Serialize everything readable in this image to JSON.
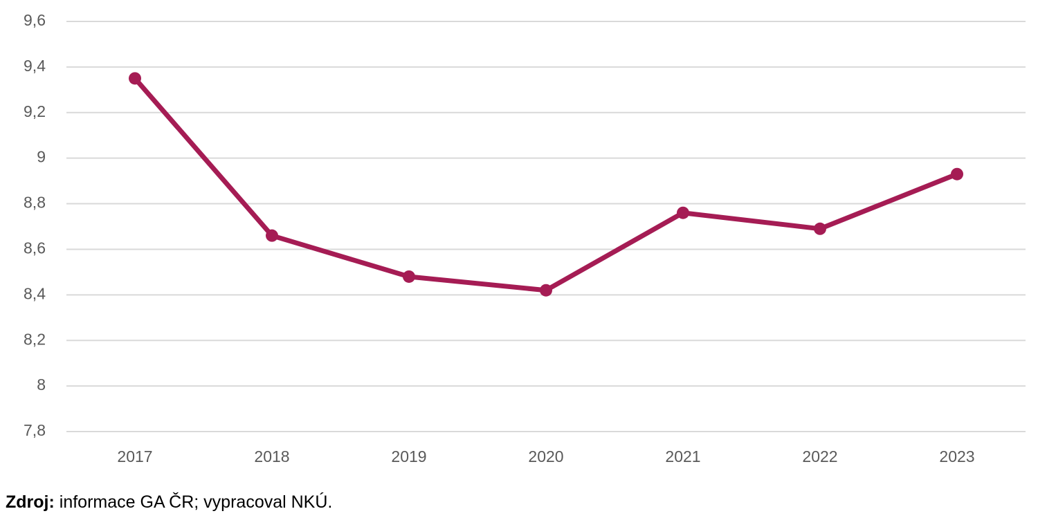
{
  "chart_data": {
    "type": "line",
    "categories": [
      "2017",
      "2018",
      "2019",
      "2020",
      "2021",
      "2022",
      "2023"
    ],
    "series": [
      {
        "color": "#a51c54",
        "values": [
          9.35,
          8.66,
          8.48,
          8.42,
          8.76,
          8.69,
          8.93
        ]
      }
    ],
    "ylim": [
      7.8,
      9.6
    ],
    "yticks": [
      {
        "value": 7.8,
        "label": "7,8"
      },
      8,
      {
        "value": 8.2,
        "label": "8,2"
      },
      {
        "value": 8.4,
        "label": "8,4"
      },
      {
        "value": 8.6,
        "label": "8,6"
      },
      {
        "value": 8.8,
        "label": "8,8"
      },
      9,
      {
        "value": 9.2,
        "label": "9,2"
      },
      {
        "value": 9.4,
        "label": "9,4"
      },
      {
        "value": 9.6,
        "label": "9,6"
      }
    ],
    "grid": true
  },
  "source": {
    "label": "Zdroj:",
    "text": "informace GA ČR; vypracoval NKÚ."
  }
}
